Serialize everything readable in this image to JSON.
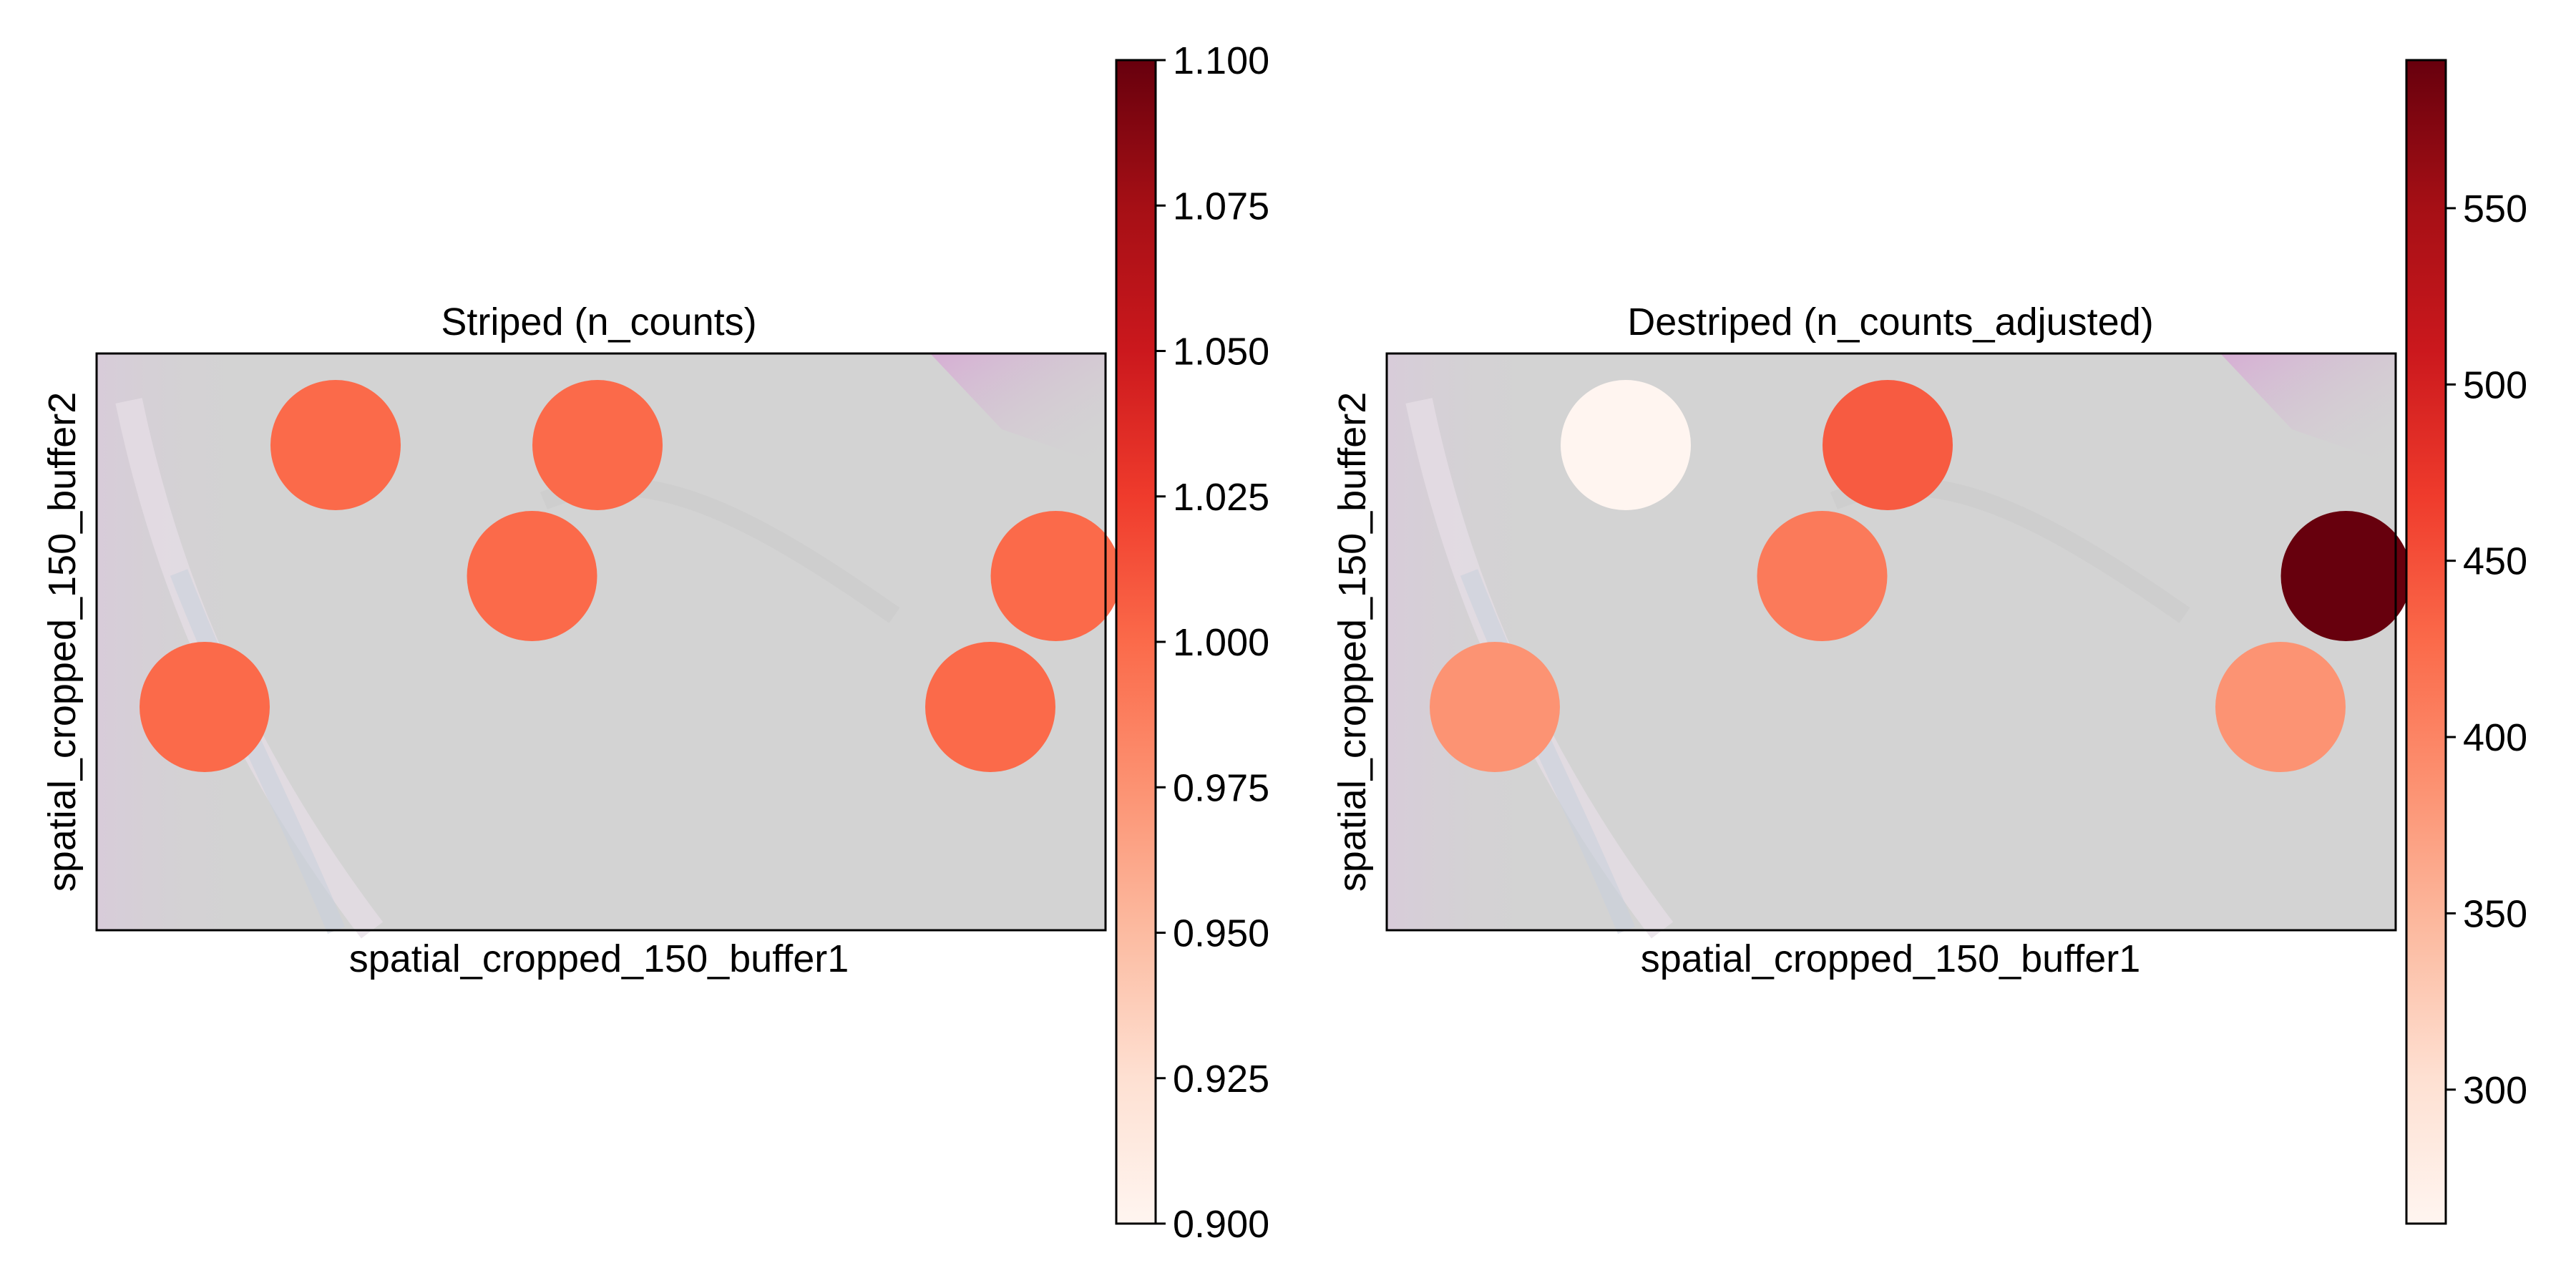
{
  "chart_data": [
    {
      "type": "scatter",
      "title": "Striped (n_counts)",
      "xlabel": "spatial_cropped_150_buffer1",
      "ylabel": "spatial_cropped_150_buffer2",
      "xticks": [],
      "yticks": [],
      "colormap": "Reds",
      "colorbar": {
        "range": [
          0.9,
          1.1
        ],
        "ticks": [
          0.9,
          0.925,
          0.95,
          0.975,
          1.0,
          1.025,
          1.05,
          1.075,
          1.1
        ],
        "tick_labels": [
          "0.900",
          "0.925",
          "0.950",
          "0.975",
          "1.000",
          "1.025",
          "1.050",
          "1.075",
          "1.100"
        ]
      },
      "points": [
        {
          "x": 1,
          "y": 1,
          "value": 1.0
        },
        {
          "x": 3,
          "y": 1,
          "value": 1.0
        },
        {
          "x": 2,
          "y": 2,
          "value": 1.0
        },
        {
          "x": 6,
          "y": 2,
          "value": 1.0
        },
        {
          "x": 0,
          "y": 3,
          "value": 1.0
        },
        {
          "x": 6,
          "y": 3,
          "value": 1.0
        }
      ],
      "background": "tissue image"
    },
    {
      "type": "scatter",
      "title": "Destriped (n_counts_adjusted)",
      "xlabel": "spatial_cropped_150_buffer1",
      "ylabel": "spatial_cropped_150_buffer2",
      "xticks": [],
      "yticks": [],
      "colormap": "Reds",
      "colorbar": {
        "range": [
          262,
          592
        ],
        "ticks": [
          300,
          350,
          400,
          450,
          500,
          550
        ],
        "tick_labels": [
          "300",
          "350",
          "400",
          "450",
          "500",
          "550"
        ]
      },
      "points": [
        {
          "x": 1,
          "y": 1,
          "value": 262
        },
        {
          "x": 3,
          "y": 1,
          "value": 440
        },
        {
          "x": 2,
          "y": 2,
          "value": 410
        },
        {
          "x": 6,
          "y": 2,
          "value": 592
        },
        {
          "x": 0,
          "y": 3,
          "value": 385
        },
        {
          "x": 6,
          "y": 3,
          "value": 385
        }
      ],
      "background": "tissue image"
    }
  ]
}
